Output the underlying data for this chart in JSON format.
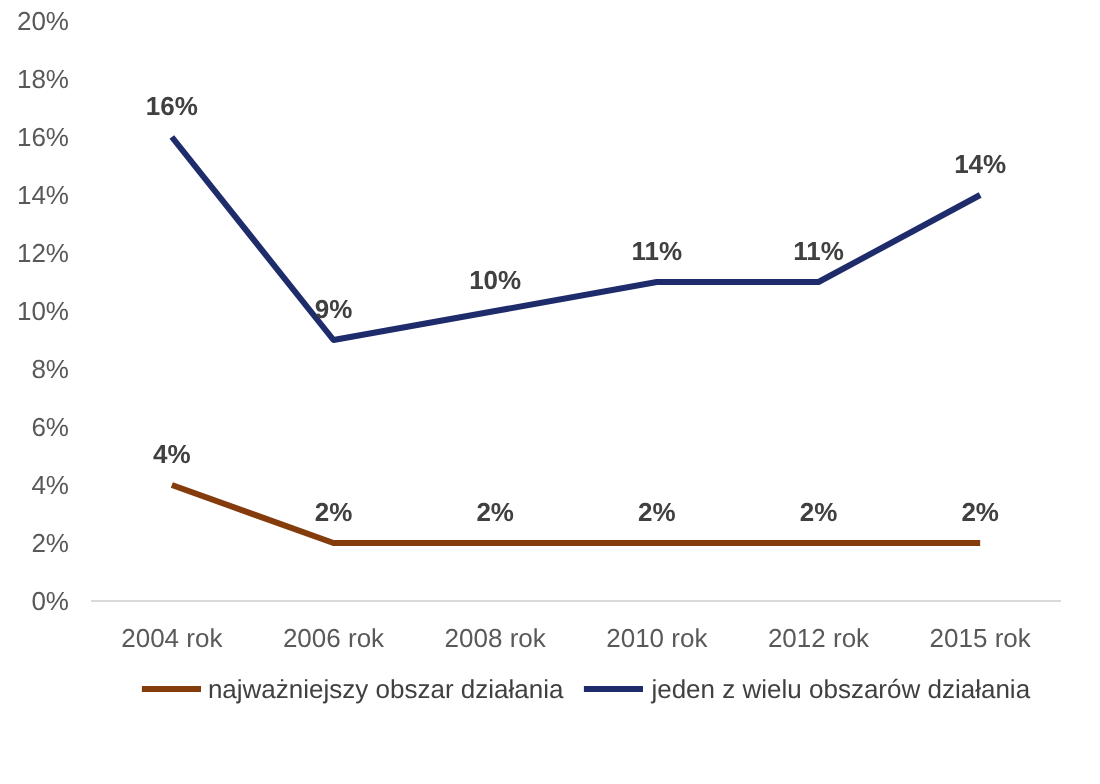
{
  "chart_data": {
    "type": "line",
    "categories": [
      "2004 rok",
      "2006 rok",
      "2008 rok",
      "2010 rok",
      "2012 rok",
      "2015 rok"
    ],
    "series": [
      {
        "name": "najważniejszy obszar działania",
        "color": "#843c0c",
        "values": [
          4,
          2,
          2,
          2,
          2,
          2
        ],
        "value_labels": [
          "4%",
          "2%",
          "2%",
          "2%",
          "2%",
          "2%"
        ]
      },
      {
        "name": "jeden z wielu obszarów działania",
        "color": "#1f2c6b",
        "values": [
          16,
          9,
          10,
          11,
          11,
          14
        ],
        "value_labels": [
          "16%",
          "9%",
          "10%",
          "11%",
          "11%",
          "14%"
        ]
      }
    ],
    "ylim": [
      0,
      20
    ],
    "yticks": [
      {
        "value": 0,
        "label": "0%"
      },
      {
        "value": 2,
        "label": "2%"
      },
      {
        "value": 4,
        "label": "4%"
      },
      {
        "value": 6,
        "label": "6%"
      },
      {
        "value": 8,
        "label": "8%"
      },
      {
        "value": 10,
        "label": "10%"
      },
      {
        "value": 12,
        "label": "12%"
      },
      {
        "value": 14,
        "label": "14%"
      },
      {
        "value": 16,
        "label": "16%"
      },
      {
        "value": 18,
        "label": "18%"
      },
      {
        "value": 20,
        "label": "20%"
      }
    ],
    "grid": false,
    "legend": "bottom",
    "marker": "none",
    "line_style": "solid"
  }
}
